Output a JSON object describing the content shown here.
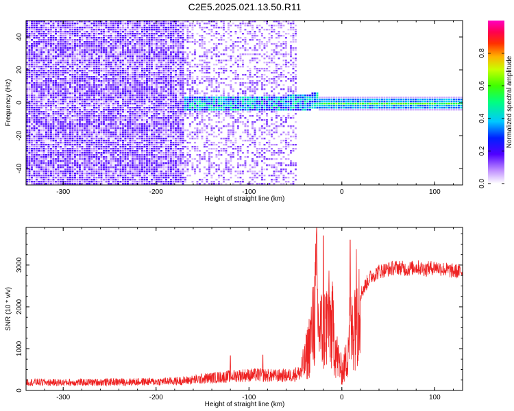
{
  "title": "C2E5.2025.021.13.50.R11",
  "chart_data": [
    {
      "type": "heatmap",
      "xlabel": "Height of straight line (km)",
      "ylabel": "Frequency (Hz)",
      "xlim": [
        -340,
        130
      ],
      "ylim": [
        -50,
        50
      ],
      "xticks": [
        -300,
        -200,
        -100,
        0,
        100
      ],
      "yticks": [
        -40,
        -20,
        0,
        20,
        40
      ],
      "colorbar": {
        "label": "Normalized spectral amplitude",
        "range": [
          0.0,
          1.0
        ],
        "ticks": [
          0.0,
          0.2,
          0.4,
          0.6,
          0.8
        ],
        "colormap": [
          "#ffffff",
          "#8a2be2",
          "#4b00ff",
          "#0040ff",
          "#00c8ff",
          "#00ff80",
          "#40ff00",
          "#c8ff00",
          "#ffc800",
          "#ff4000",
          "#ff0040",
          "#ff00c0"
        ]
      },
      "regions": [
        {
          "x_range": [
            -340,
            -170
          ],
          "freq_range": [
            -50,
            50
          ],
          "amplitude": 0.15
        },
        {
          "x_range": [
            -170,
            -50
          ],
          "freq_range": [
            -50,
            50
          ],
          "amplitude": 0.05
        },
        {
          "x_range": [
            -170,
            -25
          ],
          "freq_range": [
            -6,
            6
          ],
          "amplitude": 0.45
        },
        {
          "x_range": [
            -25,
            130
          ],
          "freq_range": [
            -3,
            3
          ],
          "amplitude": 0.6
        }
      ]
    },
    {
      "type": "line",
      "xlabel": "Height of straight line (km)",
      "ylabel": "SNR (10 * v/v)",
      "xlim": [
        -340,
        130
      ],
      "ylim": [
        0,
        3900
      ],
      "xticks": [
        -300,
        -200,
        -100,
        0,
        100
      ],
      "yticks": [
        0,
        1000,
        2000,
        3000
      ],
      "color": "#ee2222",
      "series": [
        {
          "x": [
            -340,
            -300,
            -250,
            -200,
            -170,
            -150,
            -130,
            -110,
            -90,
            -70,
            -55,
            -45,
            -40,
            -35,
            -30,
            -27,
            -25,
            -20,
            -15,
            -10,
            -5,
            0,
            5,
            8,
            10,
            15,
            20,
            25,
            30,
            40,
            50,
            60,
            70,
            80,
            90,
            100,
            110,
            120,
            130
          ],
          "values": [
            200,
            190,
            200,
            210,
            230,
            280,
            320,
            360,
            370,
            350,
            360,
            420,
            650,
            1100,
            1700,
            2400,
            1500,
            1400,
            1700,
            1500,
            800,
            450,
            700,
            1500,
            1300,
            2000,
            2300,
            2500,
            2700,
            2850,
            2900,
            2950,
            2900,
            2950,
            2900,
            2950,
            2900,
            2850,
            2850
          ]
        }
      ],
      "spikes": [
        {
          "x": -27,
          "y": 3900
        },
        {
          "x": -20,
          "y": 3700
        },
        {
          "x": 9,
          "y": 3600
        },
        {
          "x": -120,
          "y": 830
        },
        {
          "x": -85,
          "y": 850
        }
      ]
    }
  ]
}
